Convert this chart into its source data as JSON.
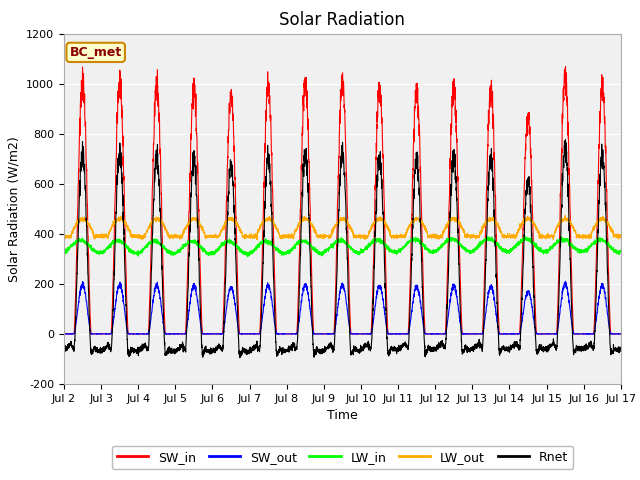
{
  "title": "Solar Radiation",
  "ylabel": "Solar Radiation (W/m2)",
  "xlabel": "Time",
  "ylim": [
    -200,
    1200
  ],
  "yticks": [
    -200,
    0,
    200,
    400,
    600,
    800,
    1000,
    1200
  ],
  "num_days": 15,
  "start_day": 2,
  "points_per_day": 288,
  "series_colors": {
    "SW_in": "#ff0000",
    "SW_out": "#0000ff",
    "LW_in": "#00ff00",
    "LW_out": "#ffaa00",
    "Rnet": "#000000"
  },
  "legend_label": "BC_met",
  "legend_bg": "#ffffcc",
  "legend_border": "#cc8800",
  "legend_text_color": "#8b0000",
  "fig_bg": "#ffffff",
  "plot_bg": "#f0f0f0",
  "grid_color": "#ffffff",
  "title_fontsize": 12,
  "label_fontsize": 9,
  "tick_fontsize": 8
}
